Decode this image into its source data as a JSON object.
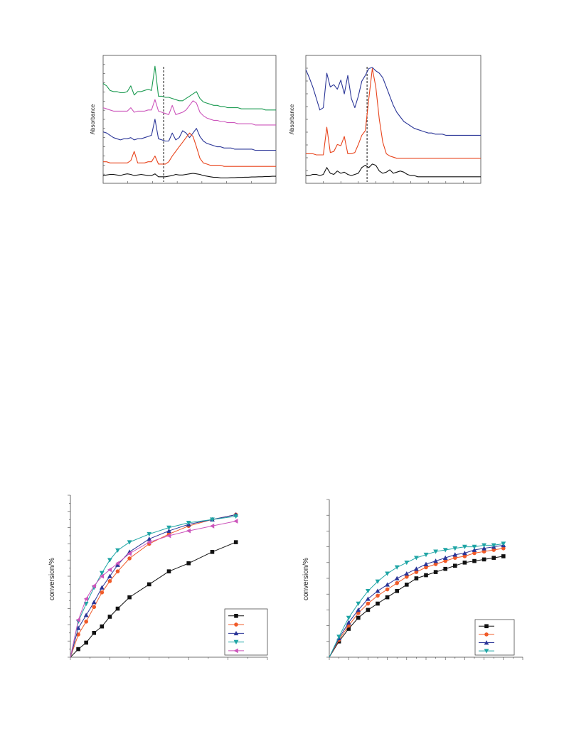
{
  "chart_data": [
    {
      "type": "line",
      "ylabel": "Absorbance",
      "x": [
        0,
        2,
        4,
        6,
        8,
        10,
        12,
        14,
        16,
        18,
        20,
        22,
        24,
        26,
        28,
        30,
        32,
        34,
        36,
        38,
        40,
        42,
        44,
        46,
        48,
        50,
        52,
        54,
        56,
        58,
        60,
        62,
        64,
        66,
        68,
        70,
        72,
        74,
        76,
        78,
        80,
        82,
        84,
        86,
        88,
        90,
        92,
        94,
        96,
        98,
        100
      ],
      "reference_line_x": 35,
      "series": [
        {
          "color": "#1a9a50",
          "values": [
            0.83,
            0.81,
            0.77,
            0.76,
            0.76,
            0.75,
            0.75,
            0.76,
            0.81,
            0.73,
            0.76,
            0.76,
            0.77,
            0.78,
            0.77,
            0.98,
            0.72,
            0.72,
            0.71,
            0.71,
            0.7,
            0.69,
            0.68,
            0.68,
            0.7,
            0.72,
            0.74,
            0.76,
            0.7,
            0.67,
            0.66,
            0.65,
            0.64,
            0.64,
            0.63,
            0.63,
            0.62,
            0.62,
            0.62,
            0.62,
            0.61,
            0.61,
            0.61,
            0.61,
            0.61,
            0.61,
            0.61,
            0.6,
            0.6,
            0.6,
            0.6
          ]
        },
        {
          "color": "#cc55bb",
          "values": [
            0.62,
            0.61,
            0.6,
            0.59,
            0.59,
            0.59,
            0.59,
            0.59,
            0.62,
            0.58,
            0.59,
            0.59,
            0.59,
            0.6,
            0.6,
            0.69,
            0.59,
            0.58,
            0.57,
            0.56,
            0.64,
            0.56,
            0.57,
            0.58,
            0.6,
            0.64,
            0.68,
            0.66,
            0.58,
            0.55,
            0.53,
            0.52,
            0.51,
            0.51,
            0.5,
            0.5,
            0.49,
            0.49,
            0.49,
            0.48,
            0.48,
            0.48,
            0.48,
            0.48,
            0.47,
            0.47,
            0.47,
            0.47,
            0.47,
            0.47,
            0.47
          ]
        },
        {
          "color": "#2a3597",
          "values": [
            0.41,
            0.4,
            0.38,
            0.36,
            0.35,
            0.34,
            0.35,
            0.35,
            0.36,
            0.34,
            0.35,
            0.35,
            0.36,
            0.37,
            0.38,
            0.52,
            0.35,
            0.34,
            0.33,
            0.33,
            0.4,
            0.34,
            0.36,
            0.42,
            0.4,
            0.36,
            0.4,
            0.44,
            0.37,
            0.33,
            0.31,
            0.3,
            0.29,
            0.28,
            0.28,
            0.27,
            0.27,
            0.27,
            0.26,
            0.26,
            0.26,
            0.26,
            0.26,
            0.26,
            0.25,
            0.25,
            0.25,
            0.25,
            0.25,
            0.25,
            0.25
          ]
        },
        {
          "color": "#e8441c",
          "values": [
            0.15,
            0.15,
            0.14,
            0.14,
            0.14,
            0.14,
            0.14,
            0.14,
            0.16,
            0.24,
            0.14,
            0.14,
            0.14,
            0.15,
            0.15,
            0.2,
            0.13,
            0.13,
            0.13,
            0.15,
            0.2,
            0.24,
            0.28,
            0.32,
            0.36,
            0.4,
            0.37,
            0.28,
            0.18,
            0.14,
            0.13,
            0.12,
            0.12,
            0.12,
            0.12,
            0.11,
            0.11,
            0.11,
            0.11,
            0.11,
            0.11,
            0.11,
            0.11,
            0.11,
            0.11,
            0.11,
            0.11,
            0.11,
            0.11,
            0.11,
            0.11
          ]
        },
        {
          "color": "#111111",
          "values": [
            0.03,
            0.035,
            0.04,
            0.04,
            0.035,
            0.03,
            0.04,
            0.045,
            0.04,
            0.03,
            0.035,
            0.04,
            0.035,
            0.03,
            0.03,
            0.045,
            0.02,
            0.02,
            0.02,
            0.025,
            0.03,
            0.04,
            0.035,
            0.035,
            0.04,
            0.045,
            0.05,
            0.045,
            0.04,
            0.03,
            0.025,
            0.02,
            0.015,
            0.015,
            0.01,
            0.01,
            0.01,
            0.012,
            0.012,
            0.014,
            0.014,
            0.016,
            0.016,
            0.018,
            0.018,
            0.02,
            0.02,
            0.022,
            0.022,
            0.024,
            0.024
          ]
        }
      ]
    },
    {
      "type": "line",
      "ylabel": "Absorbance",
      "x": [
        0,
        2,
        4,
        6,
        8,
        10,
        12,
        14,
        16,
        18,
        20,
        22,
        24,
        26,
        28,
        30,
        32,
        34,
        36,
        38,
        40,
        42,
        44,
        46,
        48,
        50,
        52,
        54,
        56,
        58,
        60,
        62,
        64,
        66,
        68,
        70,
        72,
        74,
        76,
        78,
        80,
        82,
        84,
        86,
        88,
        90,
        92,
        94,
        96,
        98,
        100
      ],
      "reference_line_x": 35,
      "series": [
        {
          "color": "#2a3597",
          "values": [
            0.95,
            0.88,
            0.8,
            0.7,
            0.6,
            0.62,
            0.92,
            0.8,
            0.82,
            0.78,
            0.86,
            0.74,
            0.9,
            0.7,
            0.62,
            0.72,
            0.85,
            0.9,
            0.96,
            0.97,
            0.94,
            0.92,
            0.88,
            0.8,
            0.72,
            0.64,
            0.58,
            0.54,
            0.5,
            0.48,
            0.46,
            0.44,
            0.43,
            0.42,
            0.41,
            0.4,
            0.4,
            0.39,
            0.39,
            0.39,
            0.38,
            0.38,
            0.38,
            0.38,
            0.38,
            0.38,
            0.38,
            0.38,
            0.38,
            0.38,
            0.38
          ]
        },
        {
          "color": "#e8441c",
          "values": [
            0.22,
            0.22,
            0.22,
            0.21,
            0.21,
            0.21,
            0.45,
            0.23,
            0.24,
            0.3,
            0.29,
            0.37,
            0.22,
            0.22,
            0.23,
            0.3,
            0.38,
            0.42,
            0.7,
            0.96,
            0.8,
            0.52,
            0.32,
            0.22,
            0.2,
            0.19,
            0.18,
            0.18,
            0.18,
            0.18,
            0.18,
            0.18,
            0.18,
            0.18,
            0.18,
            0.18,
            0.18,
            0.18,
            0.18,
            0.18,
            0.18,
            0.18,
            0.18,
            0.18,
            0.18,
            0.18,
            0.18,
            0.18,
            0.18,
            0.18,
            0.18
          ]
        },
        {
          "color": "#111111",
          "values": [
            0.03,
            0.03,
            0.04,
            0.04,
            0.03,
            0.04,
            0.1,
            0.05,
            0.04,
            0.07,
            0.05,
            0.06,
            0.04,
            0.03,
            0.04,
            0.05,
            0.1,
            0.12,
            0.1,
            0.13,
            0.12,
            0.07,
            0.05,
            0.06,
            0.08,
            0.05,
            0.06,
            0.07,
            0.06,
            0.04,
            0.03,
            0.03,
            0.02,
            0.02,
            0.02,
            0.02,
            0.02,
            0.02,
            0.02,
            0.02,
            0.02,
            0.02,
            0.02,
            0.02,
            0.02,
            0.02,
            0.02,
            0.02,
            0.02,
            0.02,
            0.02
          ]
        }
      ]
    },
    {
      "type": "line",
      "ylabel": "conversion/%",
      "x": [
        0,
        2,
        4,
        6,
        8,
        10,
        12,
        15,
        20,
        25,
        30,
        36,
        42
      ],
      "xlim": [
        0,
        50
      ],
      "ylim": [
        0,
        100
      ],
      "series": [
        {
          "marker": "square",
          "color": "#111111",
          "values": [
            0,
            5,
            9,
            15,
            19,
            25,
            30,
            37,
            45,
            53,
            58,
            65,
            71
          ]
        },
        {
          "marker": "circle",
          "color": "#f05a28",
          "values": [
            0,
            14,
            22,
            31,
            40,
            47,
            53,
            61,
            70,
            76,
            81,
            85,
            88
          ]
        },
        {
          "marker": "triangle-up",
          "color": "#2a3597",
          "values": [
            0,
            18,
            26,
            34,
            43,
            50,
            57,
            65,
            73,
            78,
            82,
            85,
            88
          ]
        },
        {
          "marker": "triangle-down",
          "color": "#1fa5a5",
          "values": [
            0,
            22,
            33,
            43,
            52,
            60,
            66,
            71,
            76,
            80,
            83,
            85,
            87
          ]
        },
        {
          "marker": "triangle-left",
          "color": "#cc55bb",
          "values": [
            0,
            23,
            36,
            44,
            50,
            54,
            58,
            64,
            71,
            75,
            78,
            81,
            84
          ]
        }
      ]
    },
    {
      "type": "line",
      "ylabel": "conversion/%",
      "x": [
        0,
        5,
        10,
        15,
        20,
        25,
        30,
        35,
        40,
        45,
        50,
        55,
        60,
        65,
        70,
        75,
        80,
        85,
        90
      ],
      "xlim": [
        0,
        100
      ],
      "ylim": [
        0,
        100
      ],
      "series": [
        {
          "marker": "square",
          "color": "#111111",
          "values": [
            0,
            10,
            18,
            25,
            30,
            34,
            38,
            42,
            46,
            50,
            52,
            54,
            56,
            58,
            60,
            61,
            62,
            63,
            64
          ]
        },
        {
          "marker": "circle",
          "color": "#f05a28",
          "values": [
            0,
            11,
            20,
            28,
            34,
            39,
            43,
            47,
            51,
            54,
            57,
            59,
            61,
            63,
            64,
            66,
            67,
            68,
            69
          ]
        },
        {
          "marker": "triangle-up",
          "color": "#2a3597",
          "values": [
            0,
            12,
            22,
            30,
            37,
            42,
            46,
            50,
            53,
            56,
            59,
            61,
            63,
            65,
            66,
            68,
            69,
            70,
            71
          ]
        },
        {
          "marker": "triangle-down",
          "color": "#1fa5a5",
          "values": [
            0,
            13,
            25,
            34,
            42,
            48,
            53,
            57,
            60,
            63,
            65,
            67,
            68,
            69,
            70,
            70,
            71,
            71,
            72
          ]
        }
      ]
    }
  ]
}
